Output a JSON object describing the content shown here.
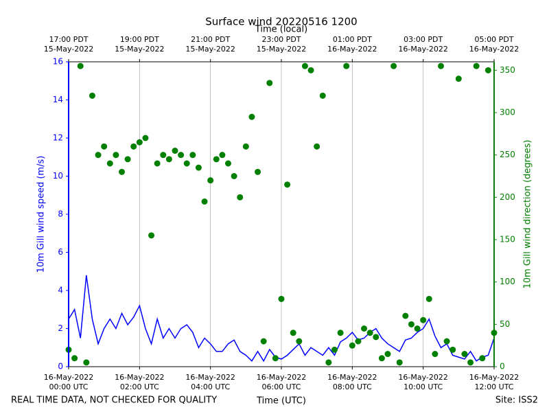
{
  "chart_data": {
    "type": "line-scatter",
    "title": "Surface wind 20220516 1200",
    "xlabel": "Time (UTC)",
    "x2label": "Time (local)",
    "ylabel": "10m Gill wind speed (m/s)",
    "y2label": "10m Gill wind direction (degrees)",
    "footer_left": "REAL TIME DATA, NOT CHECKED FOR QUALITY",
    "footer_right": "Site: ISS2",
    "grid": true,
    "xlim": [
      "2022-05-16T00:00",
      "2022-05-16T12:00"
    ],
    "xticks": [
      {
        "value": "2022-05-16T00:00",
        "label": "16-May-2022\n00:00 UTC"
      },
      {
        "value": "2022-05-16T02:00",
        "label": "16-May-2022\n02:00 UTC"
      },
      {
        "value": "2022-05-16T04:00",
        "label": "16-May-2022\n04:00 UTC"
      },
      {
        "value": "2022-05-16T06:00",
        "label": "16-May-2022\n06:00 UTC"
      },
      {
        "value": "2022-05-16T08:00",
        "label": "16-May-2022\n08:00 UTC"
      },
      {
        "value": "2022-05-16T10:00",
        "label": "16-May-2022\n10:00 UTC"
      },
      {
        "value": "2022-05-16T12:00",
        "label": "16-May-2022\n12:00 UTC"
      }
    ],
    "x2ticks": [
      {
        "value": "2022-05-16T00:00",
        "label": "17:00 PDT\n15-May-2022"
      },
      {
        "value": "2022-05-16T02:00",
        "label": "19:00 PDT\n15-May-2022"
      },
      {
        "value": "2022-05-16T04:00",
        "label": "21:00 PDT\n15-May-2022"
      },
      {
        "value": "2022-05-16T06:00",
        "label": "23:00 PDT\n15-May-2022"
      },
      {
        "value": "2022-05-16T08:00",
        "label": "01:00 PDT\n16-May-2022"
      },
      {
        "value": "2022-05-16T10:00",
        "label": "03:00 PDT\n16-May-2022"
      },
      {
        "value": "2022-05-16T12:00",
        "label": "05:00 PDT\n16-May-2022"
      }
    ],
    "ylim": [
      0,
      16
    ],
    "yticks": [
      0,
      2,
      4,
      6,
      8,
      10,
      12,
      14,
      16
    ],
    "y2lim": [
      0,
      360
    ],
    "y2ticks": [
      0,
      50,
      100,
      150,
      200,
      250,
      300,
      350
    ],
    "x": [
      "2022-05-16T00:00",
      "2022-05-16T00:10",
      "2022-05-16T00:20",
      "2022-05-16T00:30",
      "2022-05-16T00:40",
      "2022-05-16T00:50",
      "2022-05-16T01:00",
      "2022-05-16T01:10",
      "2022-05-16T01:20",
      "2022-05-16T01:30",
      "2022-05-16T01:40",
      "2022-05-16T01:50",
      "2022-05-16T02:00",
      "2022-05-16T02:10",
      "2022-05-16T02:20",
      "2022-05-16T02:30",
      "2022-05-16T02:40",
      "2022-05-16T02:50",
      "2022-05-16T03:00",
      "2022-05-16T03:10",
      "2022-05-16T03:20",
      "2022-05-16T03:30",
      "2022-05-16T03:40",
      "2022-05-16T03:50",
      "2022-05-16T04:00",
      "2022-05-16T04:10",
      "2022-05-16T04:20",
      "2022-05-16T04:30",
      "2022-05-16T04:40",
      "2022-05-16T04:50",
      "2022-05-16T05:00",
      "2022-05-16T05:10",
      "2022-05-16T05:20",
      "2022-05-16T05:30",
      "2022-05-16T05:40",
      "2022-05-16T05:50",
      "2022-05-16T06:00",
      "2022-05-16T06:10",
      "2022-05-16T06:20",
      "2022-05-16T06:30",
      "2022-05-16T06:40",
      "2022-05-16T06:50",
      "2022-05-16T07:00",
      "2022-05-16T07:10",
      "2022-05-16T07:20",
      "2022-05-16T07:30",
      "2022-05-16T07:40",
      "2022-05-16T07:50",
      "2022-05-16T08:00",
      "2022-05-16T08:10",
      "2022-05-16T08:20",
      "2022-05-16T08:30",
      "2022-05-16T08:40",
      "2022-05-16T08:50",
      "2022-05-16T09:00",
      "2022-05-16T09:10",
      "2022-05-16T09:20",
      "2022-05-16T09:30",
      "2022-05-16T09:40",
      "2022-05-16T09:50",
      "2022-05-16T10:00",
      "2022-05-16T10:10",
      "2022-05-16T10:20",
      "2022-05-16T10:30",
      "2022-05-16T10:40",
      "2022-05-16T10:50",
      "2022-05-16T11:00",
      "2022-05-16T11:10",
      "2022-05-16T11:20",
      "2022-05-16T11:30",
      "2022-05-16T11:40",
      "2022-05-16T11:50",
      "2022-05-16T12:00"
    ],
    "series": [
      {
        "name": "10m Gill wind speed (m/s)",
        "color": "#0000ff",
        "axis": "y",
        "values": [
          2.5,
          3.0,
          1.5,
          4.8,
          2.5,
          1.2,
          2.0,
          2.5,
          2.0,
          2.8,
          2.2,
          2.6,
          3.2,
          2.0,
          1.2,
          2.5,
          1.5,
          2.0,
          1.5,
          2.0,
          2.2,
          1.8,
          1.0,
          1.5,
          1.2,
          0.8,
          0.8,
          1.2,
          1.4,
          0.8,
          0.6,
          0.3,
          0.8,
          0.3,
          0.9,
          0.5,
          0.4,
          0.6,
          0.9,
          1.2,
          0.6,
          1.0,
          0.8,
          0.6,
          1.0,
          0.6,
          1.3,
          1.5,
          1.8,
          1.4,
          1.5,
          1.8,
          2.0,
          1.5,
          1.2,
          1.0,
          0.8,
          1.4,
          1.5,
          1.8,
          2.0,
          2.5,
          1.6,
          1.0,
          1.2,
          0.6,
          0.5,
          0.4,
          0.8,
          0.3,
          0.5,
          0.6,
          1.5
        ]
      },
      {
        "name": "10m Gill wind direction (degrees)",
        "color": "#008000",
        "axis": "y2",
        "values": [
          20,
          10,
          355,
          5,
          320,
          250,
          260,
          240,
          250,
          230,
          245,
          260,
          265,
          270,
          155,
          240,
          250,
          245,
          255,
          250,
          240,
          250,
          235,
          195,
          220,
          245,
          250,
          240,
          225,
          200,
          260,
          295,
          230,
          30,
          335,
          10,
          80,
          215,
          40,
          30,
          355,
          350,
          260,
          320,
          5,
          20,
          40,
          355,
          25,
          30,
          45,
          40,
          35,
          10,
          15,
          355,
          5,
          60,
          50,
          45,
          55,
          80,
          15,
          355,
          30,
          20,
          340,
          15,
          5,
          355,
          10,
          350,
          40
        ]
      }
    ]
  }
}
